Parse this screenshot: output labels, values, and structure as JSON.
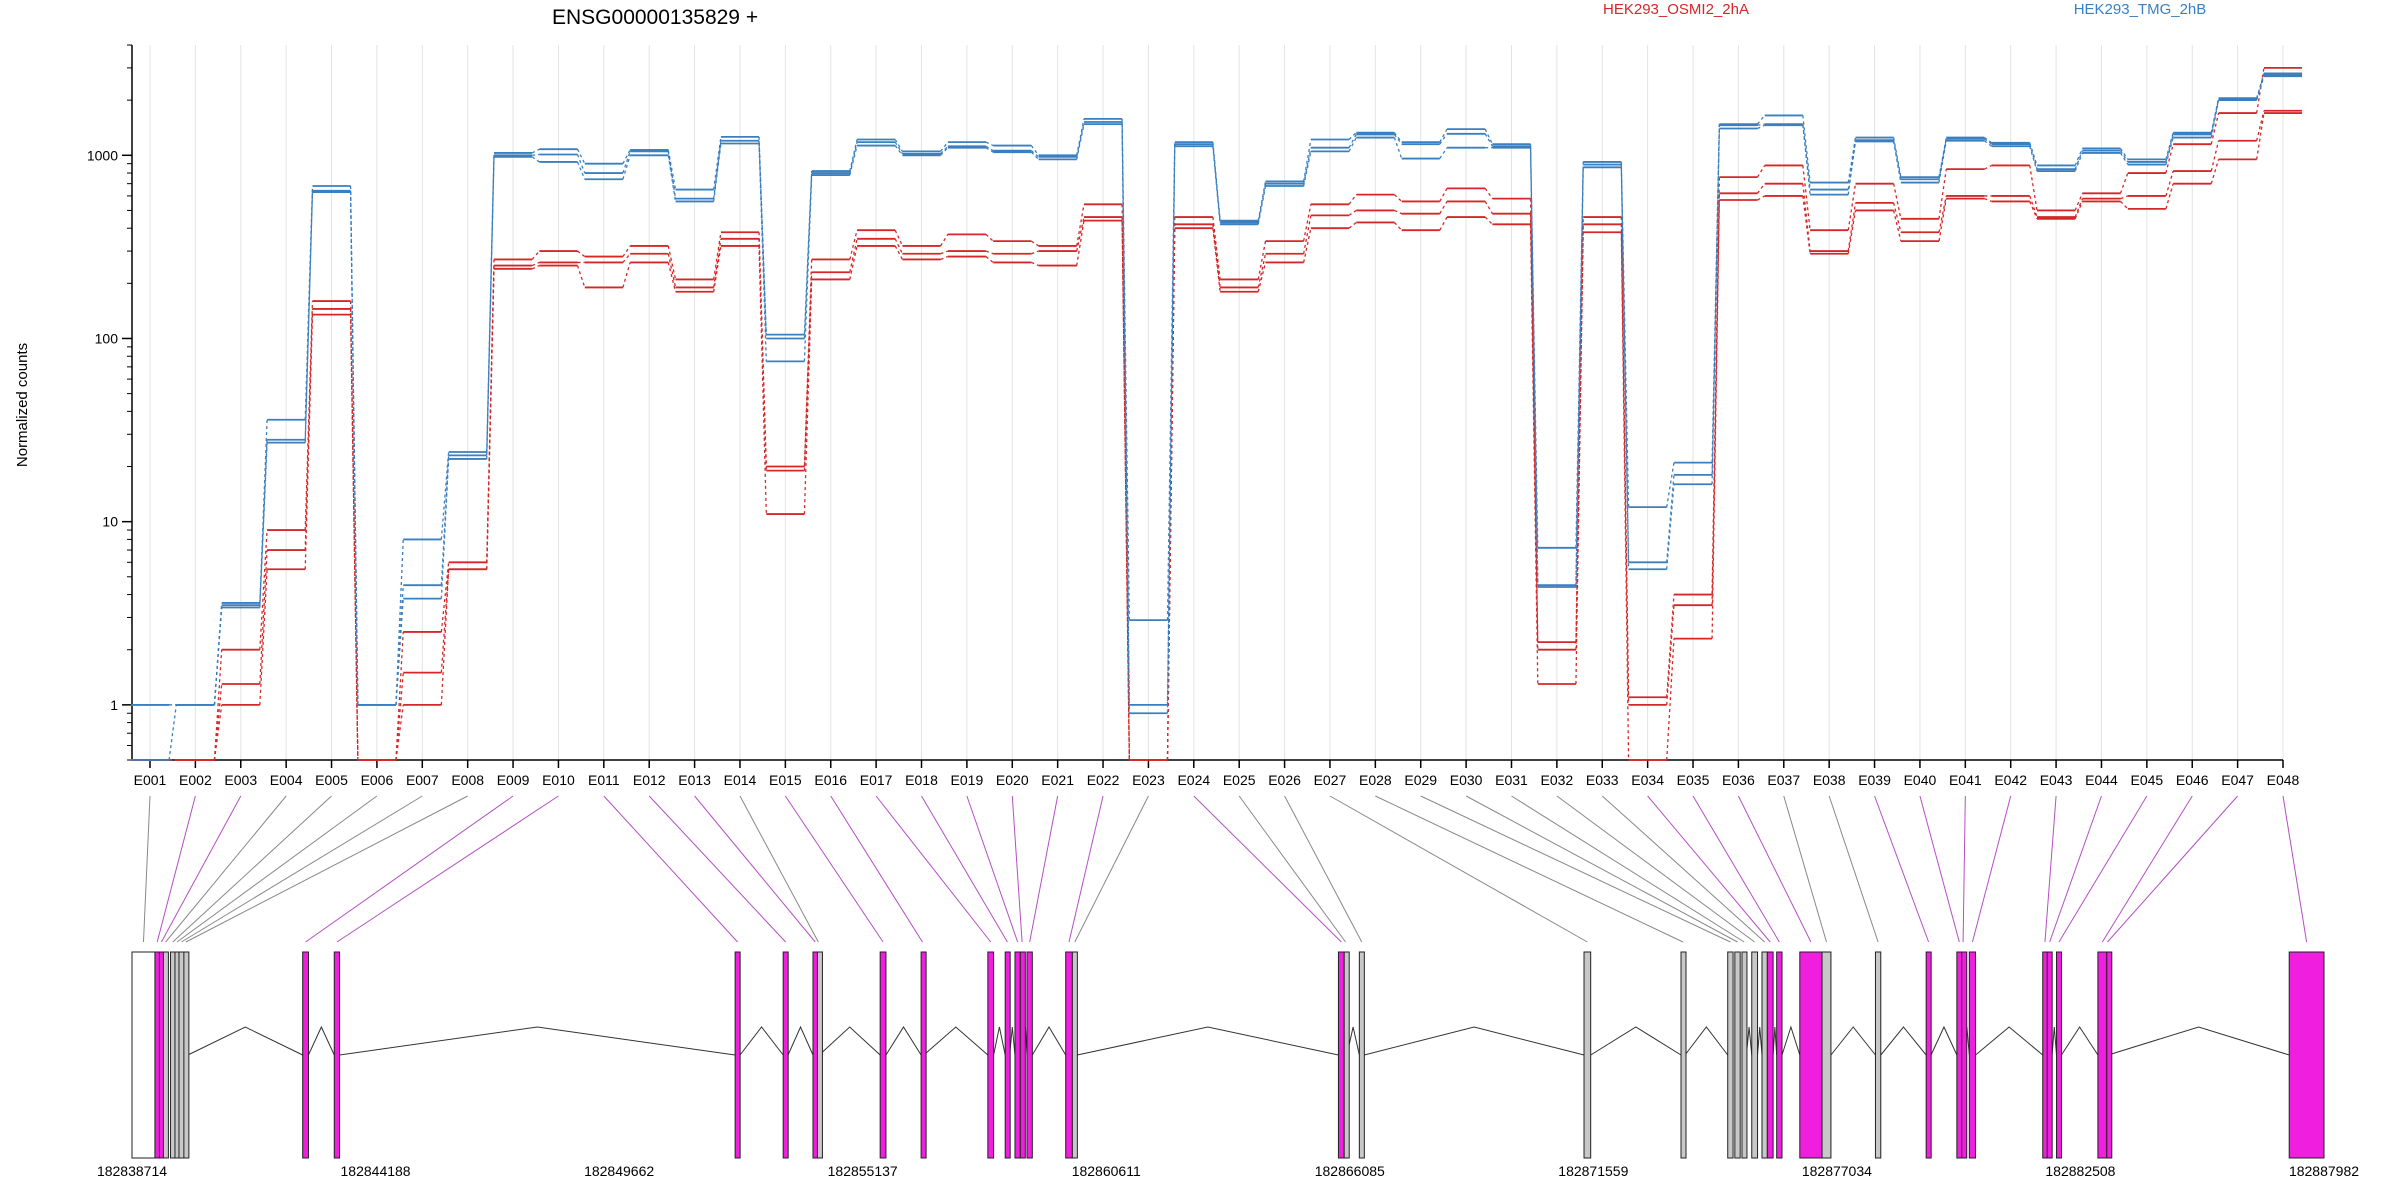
{
  "chart_data": {
    "type": "line",
    "title": "ENSG00000135829 +",
    "ylabel": "Normalized counts",
    "xlabel": "",
    "y_scale": "log",
    "ylim": [
      0.5,
      4000
    ],
    "y_ticks": [
      1,
      10,
      100,
      1000
    ],
    "y_tick_labels": [
      "1",
      "10",
      "100",
      "1000"
    ],
    "grid": "vertical",
    "legend_placement": "top-right",
    "categories": [
      "E001",
      "E002",
      "E003",
      "E004",
      "E005",
      "E006",
      "E007",
      "E008",
      "E009",
      "E010",
      "E011",
      "E012",
      "E013",
      "E014",
      "E015",
      "E016",
      "E017",
      "E018",
      "E019",
      "E020",
      "E021",
      "E022",
      "E023",
      "E024",
      "E025",
      "E026",
      "E027",
      "E028",
      "E029",
      "E030",
      "E031",
      "E032",
      "E033",
      "E034",
      "E035",
      "E036",
      "E037",
      "E038",
      "E039",
      "E040",
      "E041",
      "E042",
      "E043",
      "E044",
      "E045",
      "E046",
      "E047",
      "E048"
    ],
    "series": [
      {
        "name": "HEK293_OSMI2_2hA",
        "color": "#d62728",
        "style": "upper",
        "values": [
          0.5,
          0.5,
          2,
          9,
          160,
          0.5,
          2.5,
          6,
          270,
          300,
          280,
          320,
          210,
          380,
          20,
          270,
          390,
          320,
          370,
          340,
          320,
          540,
          0.5,
          460,
          210,
          340,
          540,
          610,
          560,
          660,
          580,
          2.2,
          460,
          1.1,
          4,
          760,
          880,
          390,
          700,
          450,
          840,
          880,
          500,
          620,
          800,
          1150,
          1700,
          3000
        ]
      },
      {
        "name": "HEK293_OSMI2_2hA",
        "color": "#d62728",
        "style": "middle",
        "values": [
          0.5,
          0.5,
          1.3,
          7,
          145,
          0.5,
          1.5,
          5.5,
          250,
          260,
          260,
          290,
          190,
          350,
          19,
          230,
          350,
          290,
          300,
          290,
          300,
          460,
          0.5,
          420,
          190,
          290,
          470,
          500,
          480,
          560,
          480,
          2,
          420,
          1,
          3.5,
          620,
          700,
          300,
          550,
          380,
          600,
          600,
          460,
          580,
          600,
          820,
          1200,
          1750
        ]
      },
      {
        "name": "HEK293_OSMI2_2hA",
        "color": "#d62728",
        "style": "lower",
        "values": [
          0.5,
          0.5,
          1,
          5.5,
          135,
          0.5,
          1,
          5.5,
          240,
          250,
          190,
          260,
          180,
          320,
          11,
          210,
          320,
          270,
          280,
          260,
          250,
          440,
          0.5,
          400,
          180,
          260,
          400,
          430,
          390,
          460,
          420,
          1.3,
          380,
          0.5,
          2.3,
          570,
          600,
          290,
          500,
          340,
          580,
          560,
          450,
          560,
          510,
          700,
          950,
          1700
        ]
      },
      {
        "name": "HEK293_TMG_2hB",
        "color": "#3a7fbf",
        "style": "upper",
        "values": [
          1,
          1,
          3.6,
          36,
          680,
          1,
          8,
          24,
          1030,
          1080,
          900,
          1070,
          650,
          1260,
          105,
          820,
          1220,
          1050,
          1180,
          1130,
          1000,
          1580,
          2.9,
          1180,
          440,
          720,
          1220,
          1330,
          1180,
          1390,
          1150,
          7.2,
          920,
          12,
          21,
          1480,
          1650,
          710,
          1250,
          760,
          1250,
          1170,
          880,
          1090,
          950,
          1330,
          2050,
          2800
        ]
      },
      {
        "name": "HEK293_TMG_2hB",
        "color": "#3a7fbf",
        "style": "middle",
        "values": [
          1,
          1,
          3.5,
          28,
          640,
          1,
          4.5,
          23,
          1000,
          1010,
          800,
          1050,
          580,
          1200,
          100,
          800,
          1180,
          1020,
          1120,
          1060,
          980,
          1520,
          1,
          1150,
          430,
          700,
          1100,
          1300,
          1150,
          1310,
          1120,
          4.5,
          890,
          6,
          18,
          1460,
          1480,
          650,
          1210,
          740,
          1230,
          1150,
          840,
          1060,
          920,
          1300,
          2030,
          2750
        ]
      },
      {
        "name": "HEK293_TMG_2hB",
        "color": "#3a7fbf",
        "style": "lower",
        "values": [
          0.5,
          1,
          3.4,
          27,
          630,
          1,
          3.8,
          22,
          980,
          920,
          740,
          1000,
          560,
          1160,
          75,
          780,
          1130,
          1000,
          1100,
          1040,
          950,
          1480,
          0.9,
          1120,
          420,
          680,
          1050,
          1250,
          960,
          1100,
          1100,
          4.4,
          860,
          5.5,
          16,
          1400,
          1460,
          610,
          1190,
          710,
          1200,
          1120,
          820,
          1030,
          890,
          1250,
          2000,
          2700
        ]
      }
    ],
    "legend": [
      "HEK293_OSMI2_2hA",
      "HEK293_TMG_2hB"
    ]
  },
  "gene_model": {
    "coordinate_labels": [
      "182838714",
      "182844188",
      "182849662",
      "182855137",
      "182860611",
      "182866085",
      "182871559",
      "182877034",
      "182882508",
      "182887982"
    ],
    "coord_start": 182838714,
    "coord_end": 182887982,
    "exon_colors": {
      "highlighted": "#f01fe0",
      "normal": "#c8c8c8",
      "first": "#ffffff"
    },
    "exons": [
      {
        "id": "E001",
        "start": 182838714,
        "end": 182839230,
        "kind": "first"
      },
      {
        "id": "E002",
        "start": 182839230,
        "end": 182839330,
        "kind": "highlighted"
      },
      {
        "id": "E003",
        "start": 182839330,
        "end": 182839420,
        "kind": "highlighted"
      },
      {
        "id": "E004",
        "start": 182839420,
        "end": 182839520,
        "kind": "normal"
      },
      {
        "id": "E005",
        "start": 182839580,
        "end": 182839680,
        "kind": "normal"
      },
      {
        "id": "E006",
        "start": 182839680,
        "end": 182839770,
        "kind": "normal"
      },
      {
        "id": "E007",
        "start": 182839770,
        "end": 182839880,
        "kind": "normal"
      },
      {
        "id": "E008",
        "start": 182839880,
        "end": 182839970,
        "kind": "normal"
      },
      {
        "id": "E009",
        "start": 182842550,
        "end": 182842680,
        "kind": "highlighted"
      },
      {
        "id": "E010",
        "start": 182843260,
        "end": 182843380,
        "kind": "highlighted"
      },
      {
        "id": "E011",
        "start": 182852270,
        "end": 182852380,
        "kind": "highlighted"
      },
      {
        "id": "E012",
        "start": 182853350,
        "end": 182853460,
        "kind": "highlighted"
      },
      {
        "id": "E013",
        "start": 182854020,
        "end": 182854120,
        "kind": "highlighted"
      },
      {
        "id": "E014",
        "start": 182854120,
        "end": 182854160,
        "kind": "normal"
      },
      {
        "id": "E015",
        "start": 182855530,
        "end": 182855660,
        "kind": "highlighted"
      },
      {
        "id": "E016",
        "start": 182856450,
        "end": 182856510,
        "kind": "highlighted"
      },
      {
        "id": "E017",
        "start": 182857950,
        "end": 182858080,
        "kind": "highlighted"
      },
      {
        "id": "E018",
        "start": 182858340,
        "end": 182858440,
        "kind": "highlighted"
      },
      {
        "id": "E019",
        "start": 182858560,
        "end": 182858680,
        "kind": "highlighted"
      },
      {
        "id": "E020",
        "start": 182858680,
        "end": 182858760,
        "kind": "highlighted"
      },
      {
        "id": "E021",
        "start": 182858830,
        "end": 182858950,
        "kind": "highlighted"
      },
      {
        "id": "E022",
        "start": 182859700,
        "end": 182859850,
        "kind": "highlighted"
      },
      {
        "id": "E023",
        "start": 182859850,
        "end": 182859960,
        "kind": "normal"
      },
      {
        "id": "E024",
        "start": 182865830,
        "end": 182865960,
        "kind": "highlighted"
      },
      {
        "id": "E025",
        "start": 182865960,
        "end": 182866020,
        "kind": "normal"
      },
      {
        "id": "E026",
        "start": 182866300,
        "end": 182866410,
        "kind": "normal"
      },
      {
        "id": "E027",
        "start": 182871350,
        "end": 182871500,
        "kind": "normal"
      },
      {
        "id": "E028",
        "start": 182873530,
        "end": 182873620,
        "kind": "normal"
      },
      {
        "id": "E029",
        "start": 182874580,
        "end": 182874700,
        "kind": "normal"
      },
      {
        "id": "E030",
        "start": 182874740,
        "end": 182874860,
        "kind": "normal"
      },
      {
        "id": "E031",
        "start": 182874900,
        "end": 182875000,
        "kind": "normal"
      },
      {
        "id": "E032",
        "start": 182875120,
        "end": 182875250,
        "kind": "normal"
      },
      {
        "id": "E033",
        "start": 182875350,
        "end": 182875470,
        "kind": "normal"
      },
      {
        "id": "E034",
        "start": 182875470,
        "end": 182875600,
        "kind": "highlighted"
      },
      {
        "id": "E035",
        "start": 182875680,
        "end": 182875800,
        "kind": "highlighted"
      },
      {
        "id": "E036",
        "start": 182876200,
        "end": 182876700,
        "kind": "highlighted"
      },
      {
        "id": "E037",
        "start": 182876700,
        "end": 182876900,
        "kind": "normal"
      },
      {
        "id": "E038",
        "start": 182877900,
        "end": 182878020,
        "kind": "normal"
      },
      {
        "id": "E039",
        "start": 182879040,
        "end": 182879150,
        "kind": "highlighted"
      },
      {
        "id": "E040",
        "start": 182879730,
        "end": 182879840,
        "kind": "highlighted"
      },
      {
        "id": "E041",
        "start": 182879840,
        "end": 182879900,
        "kind": "highlighted"
      },
      {
        "id": "E042",
        "start": 182880010,
        "end": 182880150,
        "kind": "highlighted"
      },
      {
        "id": "E043",
        "start": 182881660,
        "end": 182881760,
        "kind": "highlighted"
      },
      {
        "id": "E044",
        "start": 182881760,
        "end": 182881870,
        "kind": "highlighted"
      },
      {
        "id": "E045",
        "start": 182881970,
        "end": 182882080,
        "kind": "highlighted"
      },
      {
        "id": "E046",
        "start": 182882900,
        "end": 182883100,
        "kind": "highlighted"
      },
      {
        "id": "E047",
        "start": 182883100,
        "end": 182883130,
        "kind": "highlighted"
      },
      {
        "id": "E048",
        "start": 182887200,
        "end": 182887982,
        "kind": "highlighted"
      }
    ]
  }
}
